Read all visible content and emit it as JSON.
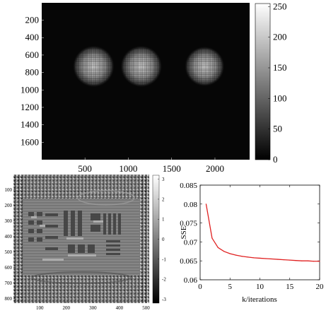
{
  "chart_data": [
    {
      "type": "heatmap",
      "title": "",
      "xlabel": "",
      "ylabel": "",
      "x_ticks": [
        "500",
        "1000",
        "1500",
        "2000"
      ],
      "y_ticks": [
        "200",
        "400",
        "600",
        "800",
        "1000",
        "1200",
        "1400",
        "1600"
      ],
      "x_tick_values": [
        500,
        1000,
        1500,
        2000
      ],
      "y_tick_values": [
        200,
        400,
        600,
        800,
        1000,
        1200,
        1400,
        1600
      ],
      "xlim": [
        1,
        2400
      ],
      "ylim": [
        1,
        1800
      ],
      "colorbar": {
        "ticks": [
          "0",
          "50",
          "100",
          "150",
          "200",
          "250"
        ],
        "tick_values": [
          0,
          50,
          100,
          150,
          200,
          250
        ],
        "range": [
          0,
          255
        ],
        "colormap": "gray"
      },
      "blobs": [
        {
          "cx": 600,
          "cy": 730,
          "r": 240
        },
        {
          "cx": 1150,
          "cy": 730,
          "r": 240
        },
        {
          "cx": 1880,
          "cy": 730,
          "r": 230
        }
      ],
      "background_color": "#060606"
    },
    {
      "type": "heatmap",
      "title": "",
      "xlabel": "",
      "ylabel": "",
      "x_ticks": [
        "100",
        "200",
        "300",
        "400",
        "500"
      ],
      "y_ticks": [
        "100",
        "200",
        "300",
        "400",
        "500",
        "600",
        "700",
        "800"
      ],
      "x_tick_values": [
        100,
        200,
        300,
        400,
        500
      ],
      "y_tick_values": [
        100,
        200,
        300,
        400,
        500,
        600,
        700,
        800
      ],
      "xlim": [
        1,
        512
      ],
      "ylim": [
        1,
        830
      ],
      "colorbar": {
        "ticks": [
          "3",
          "2",
          "1",
          "0",
          "-1",
          "-2",
          "-3"
        ],
        "tick_values": [
          3,
          2,
          1,
          0,
          -1,
          -2,
          -3
        ],
        "range": [
          -3.2,
          3.2
        ],
        "colormap": "gray"
      }
    },
    {
      "type": "line",
      "title": "",
      "xlabel": "k/iterations",
      "ylabel": "SSE",
      "xlim": [
        0,
        20
      ],
      "ylim": [
        0.06,
        0.085
      ],
      "x_ticks": [
        "0",
        "5",
        "10",
        "15",
        "20"
      ],
      "y_ticks": [
        "0.06",
        "0.065",
        "0.07",
        "0.075",
        "0.08",
        "0.085"
      ],
      "x_tick_values": [
        0,
        5,
        10,
        15,
        20
      ],
      "y_tick_values": [
        0.06,
        0.065,
        0.07,
        0.075,
        0.08,
        0.085
      ],
      "series": [
        {
          "color": "#e02020",
          "x": [
            1,
            2,
            3,
            4,
            5,
            6,
            7,
            8,
            9,
            10,
            11,
            12,
            13,
            14,
            15,
            16,
            17,
            18,
            19,
            20
          ],
          "y": [
            0.08,
            0.071,
            0.0685,
            0.0675,
            0.0669,
            0.0665,
            0.0662,
            0.066,
            0.0658,
            0.0657,
            0.0656,
            0.0655,
            0.0654,
            0.0653,
            0.0652,
            0.0651,
            0.065,
            0.065,
            0.0649,
            0.0649
          ]
        }
      ]
    }
  ]
}
